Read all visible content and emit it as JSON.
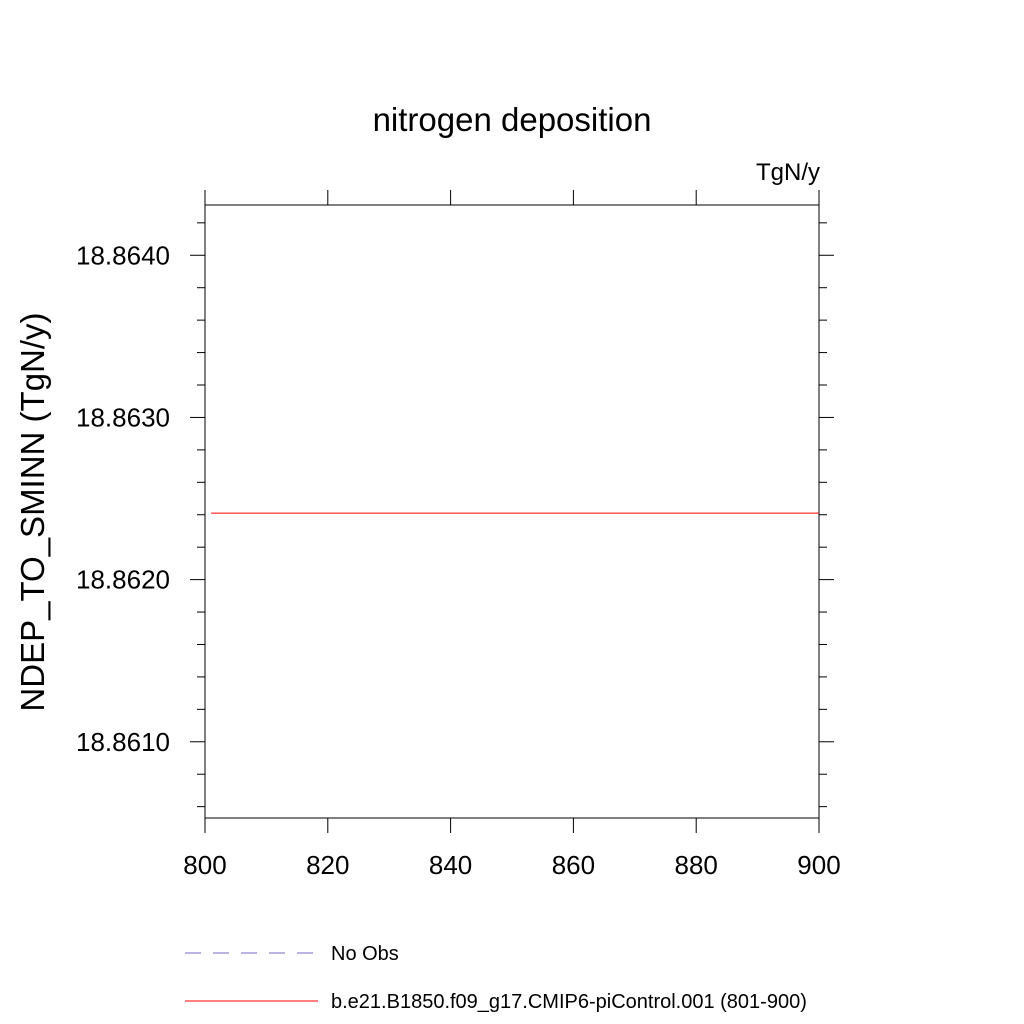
{
  "chart_data": {
    "type": "line",
    "title": "nitrogen deposition",
    "units_label": "TgN/y",
    "ylabel": "NDEP_TO_SMINN  (TgN/y)",
    "xlabel": "",
    "xlim": [
      800,
      900
    ],
    "ylim": [
      18.86053,
      18.86431
    ],
    "x_ticks": [
      "800",
      "820",
      "840",
      "860",
      "880",
      "900"
    ],
    "x_tick_values": [
      800,
      820,
      840,
      860,
      880,
      900
    ],
    "y_ticks": [
      "18.8610",
      "18.8620",
      "18.8630",
      "18.8640"
    ],
    "y_tick_values": [
      18.861,
      18.862,
      18.863,
      18.864
    ],
    "y_minor_step": 0.0002,
    "x_minor_step": 0,
    "grid": false,
    "legend_position": "bottom",
    "series": [
      {
        "name": "No Obs",
        "color": "#7b68c8",
        "dash": "dashed",
        "x": [],
        "y": []
      },
      {
        "name": "b.e21.B1850.f09_g17.CMIP6-piControl.001 (801-900)",
        "color": "#ff0000",
        "dash": "solid",
        "x": [
          801,
          900
        ],
        "y": [
          18.86241,
          18.86241
        ]
      }
    ]
  }
}
